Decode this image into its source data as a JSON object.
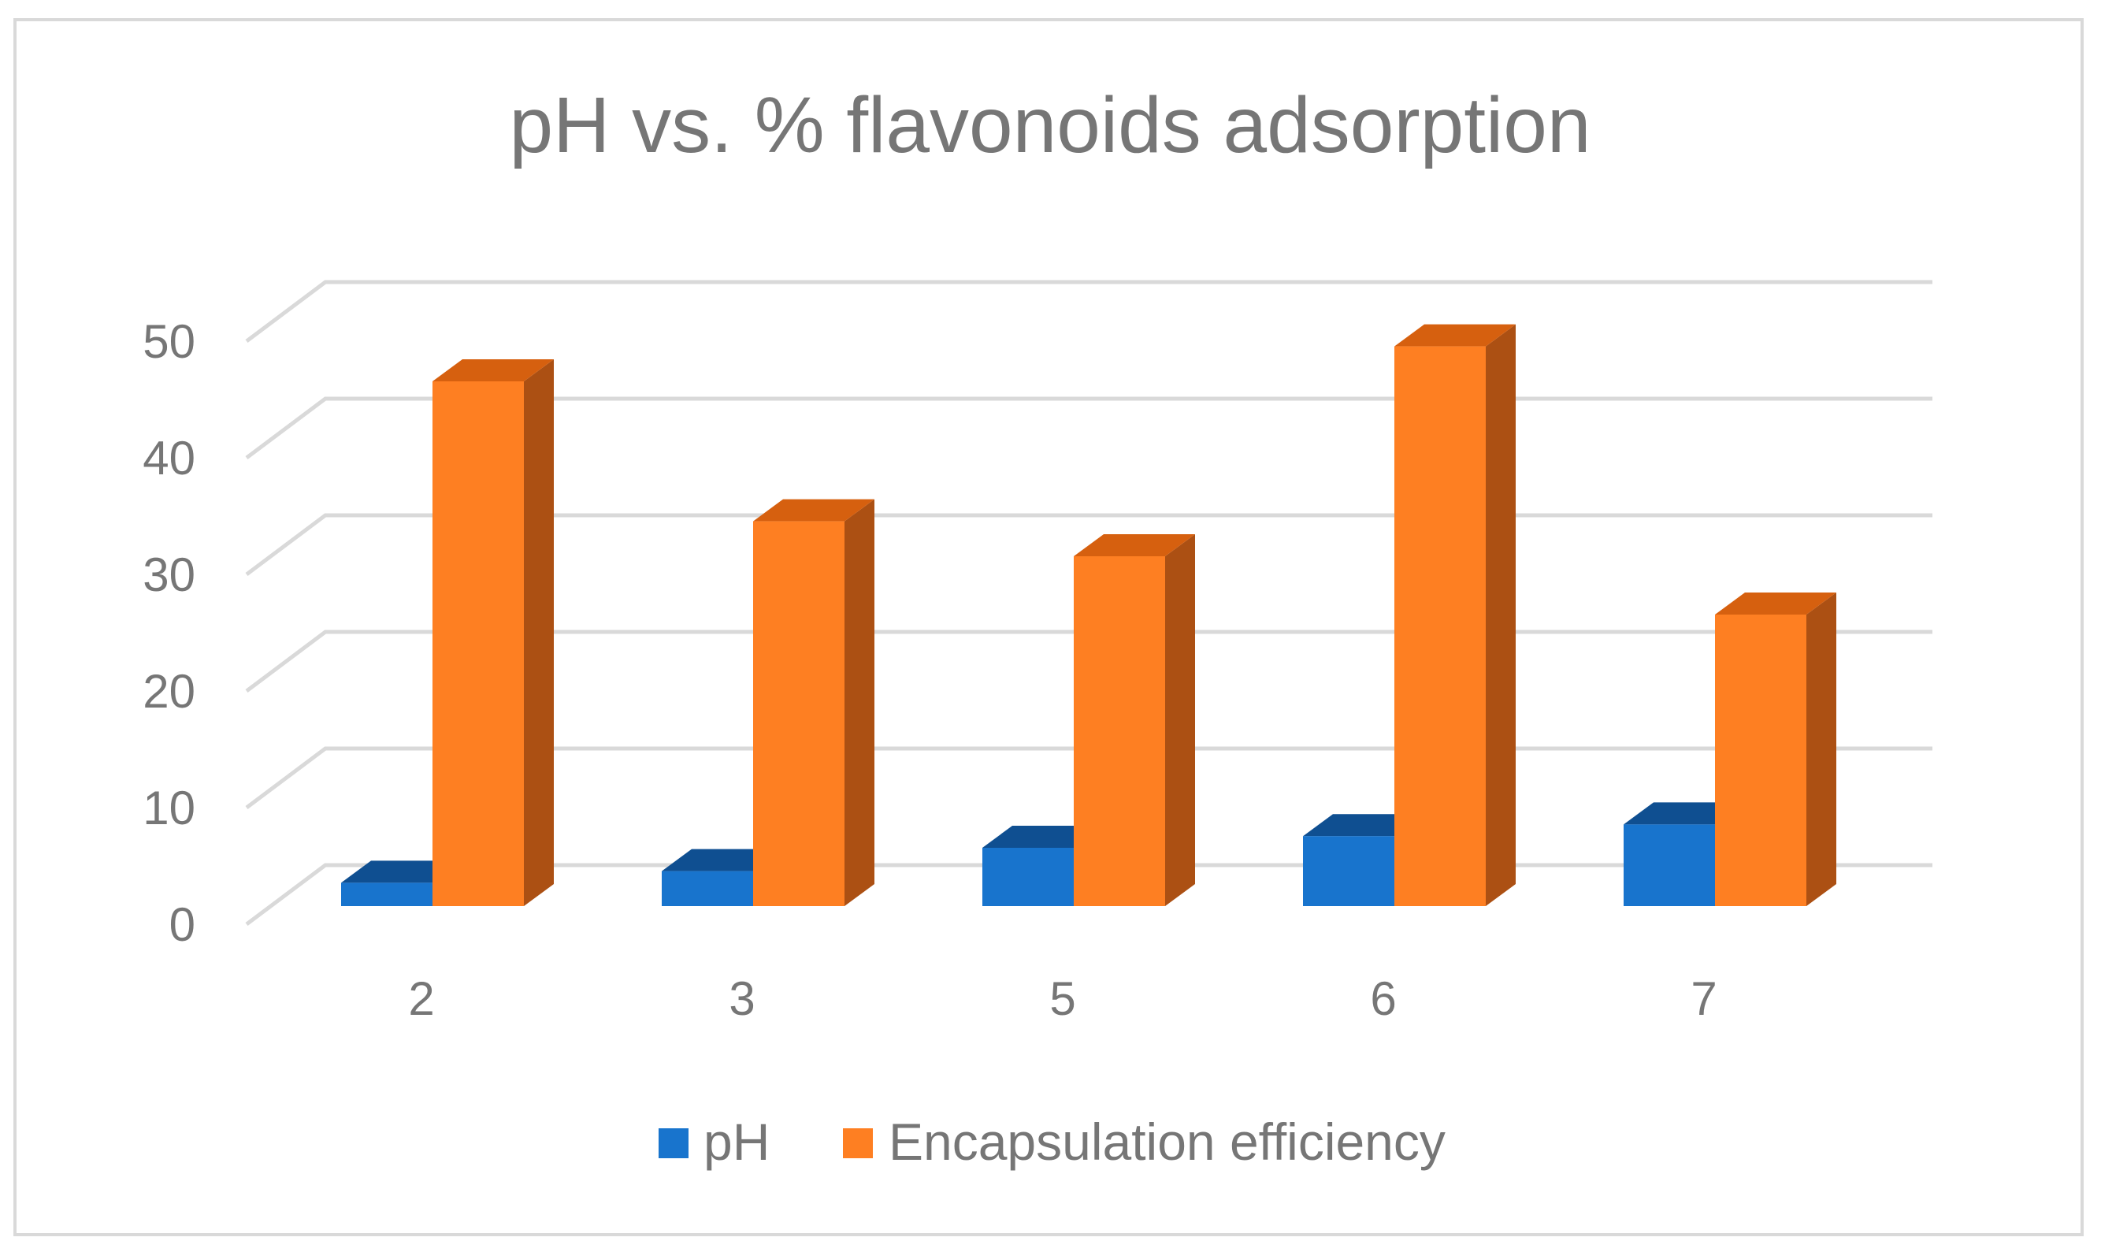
{
  "chart_data": {
    "type": "bar",
    "title": "pH vs. % flavonoids adsorption",
    "xlabel": "",
    "ylabel": "",
    "categories": [
      "2",
      "3",
      "5",
      "6",
      "7"
    ],
    "series": [
      {
        "name": "pH",
        "values": [
          2,
          3,
          5,
          6,
          7
        ],
        "color": "#1874cd",
        "top_color": "#0f4f91",
        "side_color": "#0d4a87"
      },
      {
        "name": "Encapsulation efficiency",
        "values": [
          45,
          33,
          30,
          48,
          25
        ],
        "color": "#fe7f22",
        "top_color": "#d6600f",
        "side_color": "#ac5013"
      }
    ],
    "ylim": [
      0,
      50
    ],
    "yticks": [
      0,
      10,
      20,
      30,
      40,
      50
    ],
    "grid": true,
    "legend": "bottom",
    "style": "3d-clustered-column"
  }
}
